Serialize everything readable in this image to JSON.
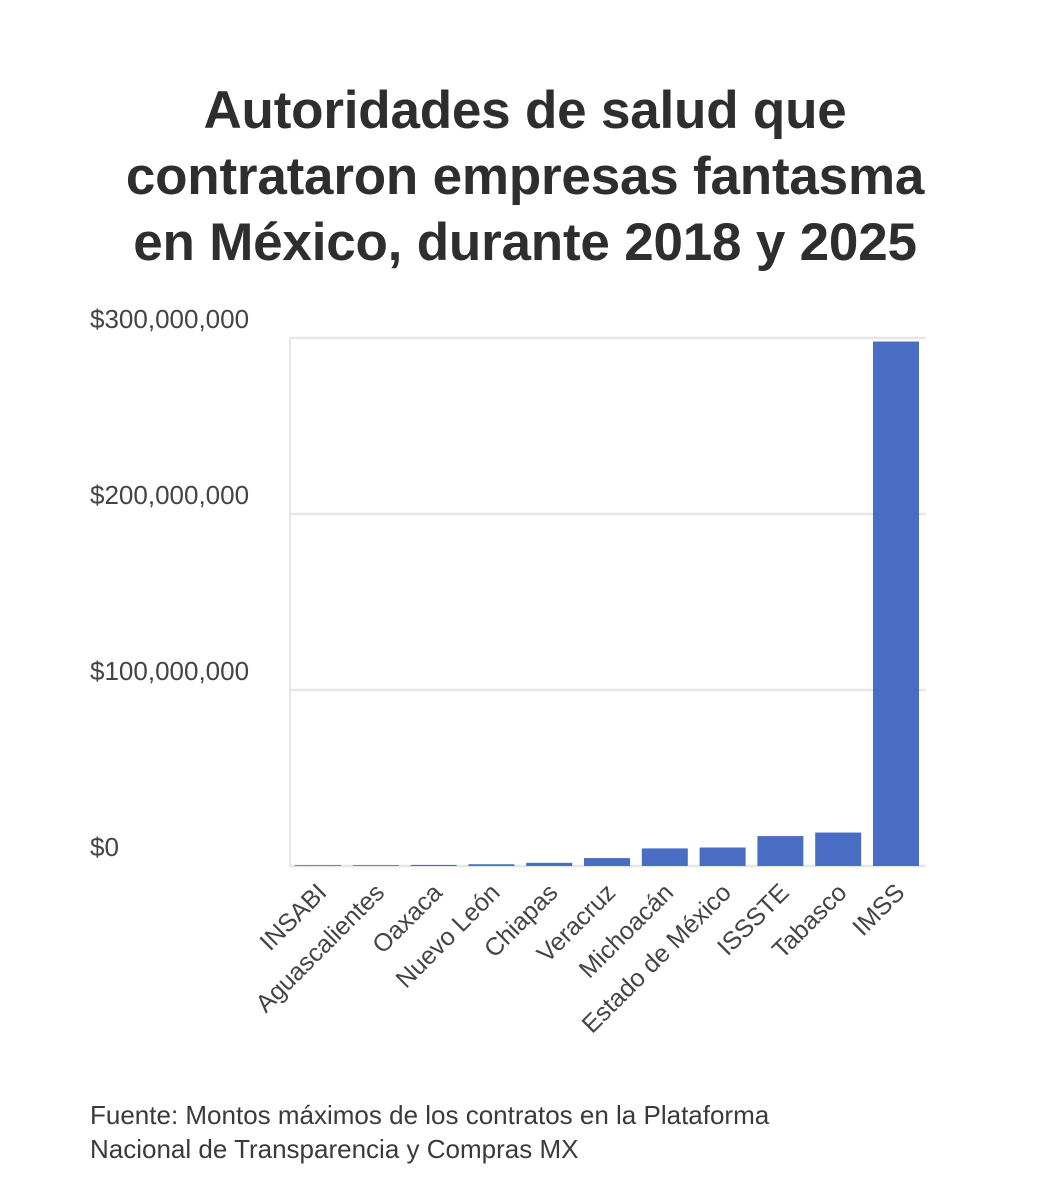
{
  "chart_data": {
    "type": "bar",
    "title_lines": [
      "Autoridades de salud que",
      "contrataron empresas fantasma",
      "en México, durante 2018 y 2025"
    ],
    "xlabel": "",
    "ylabel": "",
    "categories": [
      "INSABI",
      "Aguascalientes",
      "Oaxaca",
      "Nuevo León",
      "Chiapas",
      "Veracruz",
      "Michoacán",
      "Estado de México",
      "ISSSTE",
      "Tabasco",
      "IMSS"
    ],
    "values": [
      200000,
      400000,
      600000,
      1000000,
      1800000,
      4500000,
      10000000,
      10500000,
      17000000,
      19000000,
      298000000
    ],
    "yticks": [
      0,
      100000000,
      200000000,
      300000000
    ],
    "ytick_labels": [
      "$0",
      "$100,000,000",
      "$200,000,000",
      "$300,000,000"
    ],
    "ylim": [
      0,
      300000000
    ],
    "grid": true,
    "legend": "none",
    "bar_color": "#4a6dc4",
    "grid_color": "#e6e6e6",
    "source_lines": [
      "Fuente: Montos máximos de los contratos en la Plataforma",
      "Nacional de Transparencia y Compras MX"
    ]
  }
}
